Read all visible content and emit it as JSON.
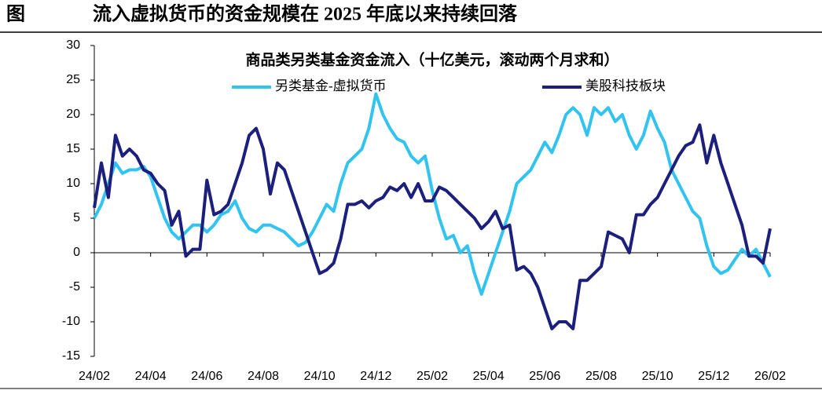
{
  "figure_label": "图",
  "chart_data": {
    "type": "line",
    "title": "流入虚拟货币的资金规模在 2025 年底以来持续回落",
    "subtitle": "商品类另类基金资金流入（十亿美元，滚动两个月求和）",
    "categories": [
      "24/02",
      null,
      null,
      null,
      null,
      null,
      null,
      null,
      "24/04",
      null,
      null,
      null,
      null,
      null,
      null,
      null,
      "24/06",
      null,
      null,
      null,
      null,
      null,
      null,
      null,
      "24/08",
      null,
      null,
      null,
      null,
      null,
      null,
      null,
      "24/10",
      null,
      null,
      null,
      null,
      null,
      null,
      null,
      "24/12",
      null,
      null,
      null,
      null,
      null,
      null,
      null,
      "25/02",
      null,
      null,
      null,
      null,
      null,
      null,
      null,
      "25/04",
      null,
      null,
      null,
      null,
      null,
      null,
      null,
      "25/06",
      null,
      null,
      null,
      null,
      null,
      null,
      null,
      "25/08",
      null,
      null,
      null,
      null,
      null,
      null,
      null,
      "25/10",
      null,
      null,
      null,
      null,
      null,
      null,
      null,
      "25/12",
      null,
      null,
      null,
      null,
      null,
      null,
      null,
      "26/02"
    ],
    "series": [
      {
        "name": "另类基金-虚拟货币",
        "color": "#33c3ef",
        "values": [
          5,
          7,
          10,
          13,
          11.5,
          12,
          12,
          12.5,
          11,
          8,
          5,
          3,
          2,
          3,
          4,
          4,
          3,
          4,
          5.5,
          6,
          7.5,
          5,
          3.5,
          3,
          4,
          4,
          3.5,
          3,
          2,
          1,
          1.5,
          3,
          5,
          7,
          6,
          10,
          13,
          14,
          15,
          18,
          23,
          20,
          18,
          16.5,
          16,
          14,
          13,
          14,
          9,
          5,
          2,
          2.5,
          0,
          1,
          -3,
          -6,
          -3,
          0,
          3,
          6,
          10,
          11,
          12,
          14,
          16,
          14.5,
          17,
          20,
          21,
          20,
          17,
          21,
          20,
          21,
          19,
          20,
          17,
          15,
          17,
          20.5,
          18,
          16,
          12,
          10,
          8,
          6,
          5,
          1,
          -2,
          -3,
          -2.5,
          -1,
          0.5,
          -0.5,
          0.5,
          -1.5,
          -3.5
        ]
      },
      {
        "name": "美股科技板块",
        "color": "#1c1f7c",
        "values": [
          6.5,
          13,
          8,
          17,
          14,
          15,
          14,
          12,
          11.5,
          10,
          9,
          4,
          6,
          -0.5,
          0.5,
          0.5,
          10.5,
          5.5,
          6,
          7,
          10,
          13,
          17,
          18,
          15,
          8.5,
          13,
          12,
          9,
          6,
          3,
          0,
          -3,
          -2.5,
          -1.5,
          2,
          7,
          7,
          7.5,
          6.5,
          7.5,
          8,
          9.5,
          9,
          10,
          8,
          10,
          7.5,
          7.5,
          9.5,
          9,
          8,
          7,
          6,
          5,
          3.5,
          4.5,
          6,
          3.5,
          4,
          -2.5,
          -2,
          -3,
          -5,
          -8,
          -11,
          -10,
          -10,
          -11,
          -4,
          -4,
          -3,
          -2,
          3,
          2.5,
          2,
          0,
          5.5,
          5.5,
          7,
          8,
          10,
          12,
          14,
          15.5,
          16,
          18.5,
          13,
          17,
          13,
          10,
          7,
          4,
          -0.5,
          -0.5,
          -1.5,
          3.5
        ]
      }
    ],
    "ylim": [
      -15,
      30
    ],
    "yticks": [
      -15,
      -10,
      -5,
      0,
      5,
      10,
      15,
      20,
      25,
      30
    ]
  }
}
